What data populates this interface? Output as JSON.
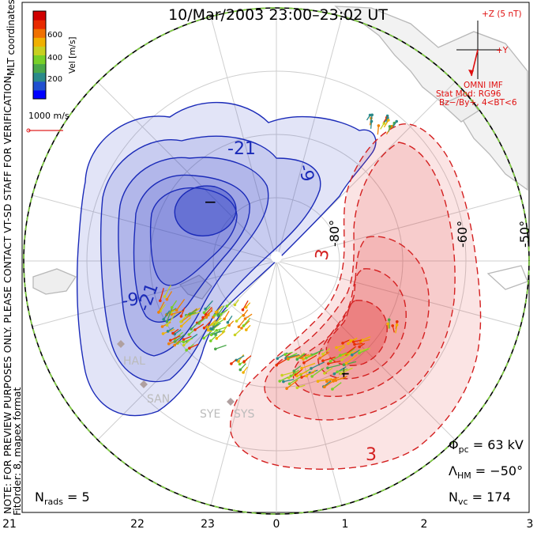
{
  "title": "10/Mar/2003 23:00–23:02 UT",
  "side_note": "NOTE: FOR PREVIEW PURPOSES ONLY. PLEASE CONTACT VT-SD STAFF FOR VERIFICATION.",
  "fit_order": "FitOrder: 8, mapex format",
  "coord_label": "MLT coordinates",
  "colorbar": {
    "label": "Vel [m/s]",
    "ticks": [
      "600",
      "400",
      "200"
    ],
    "colors": [
      "#0000ff",
      "#2050d0",
      "#2a8a8a",
      "#4aa84a",
      "#78d028",
      "#c8d020",
      "#f0b000",
      "#f07000",
      "#e82a00",
      "#d00000"
    ]
  },
  "velocity_scale": "1000 m/s",
  "imf": {
    "z_label": "+Z (5 nT)",
    "y_label": "+Y",
    "source": "OMNI IMF",
    "model": "Stat Mod: RG96",
    "condition": "Bz−/By+, 4<BT<6"
  },
  "latitude_labels": [
    "-80°",
    "-60°",
    "-50°"
  ],
  "radars": [
    "HAL",
    "SAN",
    "SYE",
    "SYS"
  ],
  "contour_labels": {
    "neg_outer": "-9",
    "neg_inner": "-21",
    "neg_outer_2": "-9",
    "neg_inner_2": "-21",
    "pos_inner": "3",
    "pos_outer": "3",
    "min_marker": "−",
    "max_marker": "+"
  },
  "mlt_ticks": [
    "21",
    "22",
    "23",
    "0",
    "1",
    "2",
    "3"
  ],
  "stats": {
    "n_rads_label": "N",
    "n_rads_sub": "rads",
    "n_rads_value": " = 5",
    "phi_label": "Φ",
    "phi_sub": "pc",
    "phi_value": " = 63 kV",
    "lambda_label": "Λ",
    "lambda_sub": "HM",
    "lambda_value": " = −50°",
    "nvc_label": "N",
    "nvc_sub": "vc",
    "nvc_value": " = 174"
  },
  "colors": {
    "negative_line": "#1a2ab8",
    "positive_line": "#d42020",
    "title": "#000000",
    "imf": "#e01010"
  }
}
